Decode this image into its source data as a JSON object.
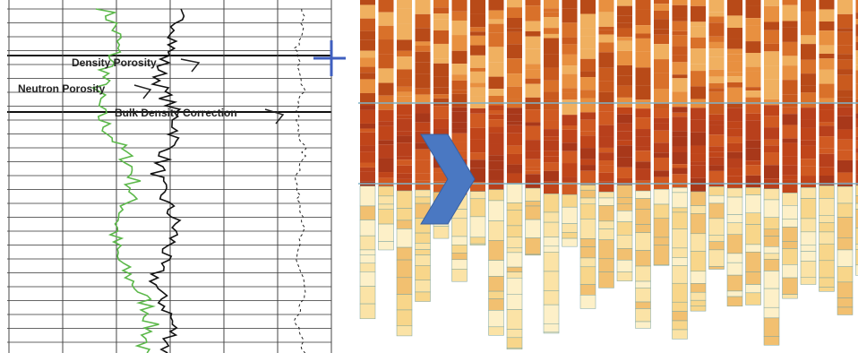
{
  "labels": {
    "density": "Density Porosity",
    "neutron": "Neutron Porosity",
    "bulk": "Bulk Density Correction"
  }
}
